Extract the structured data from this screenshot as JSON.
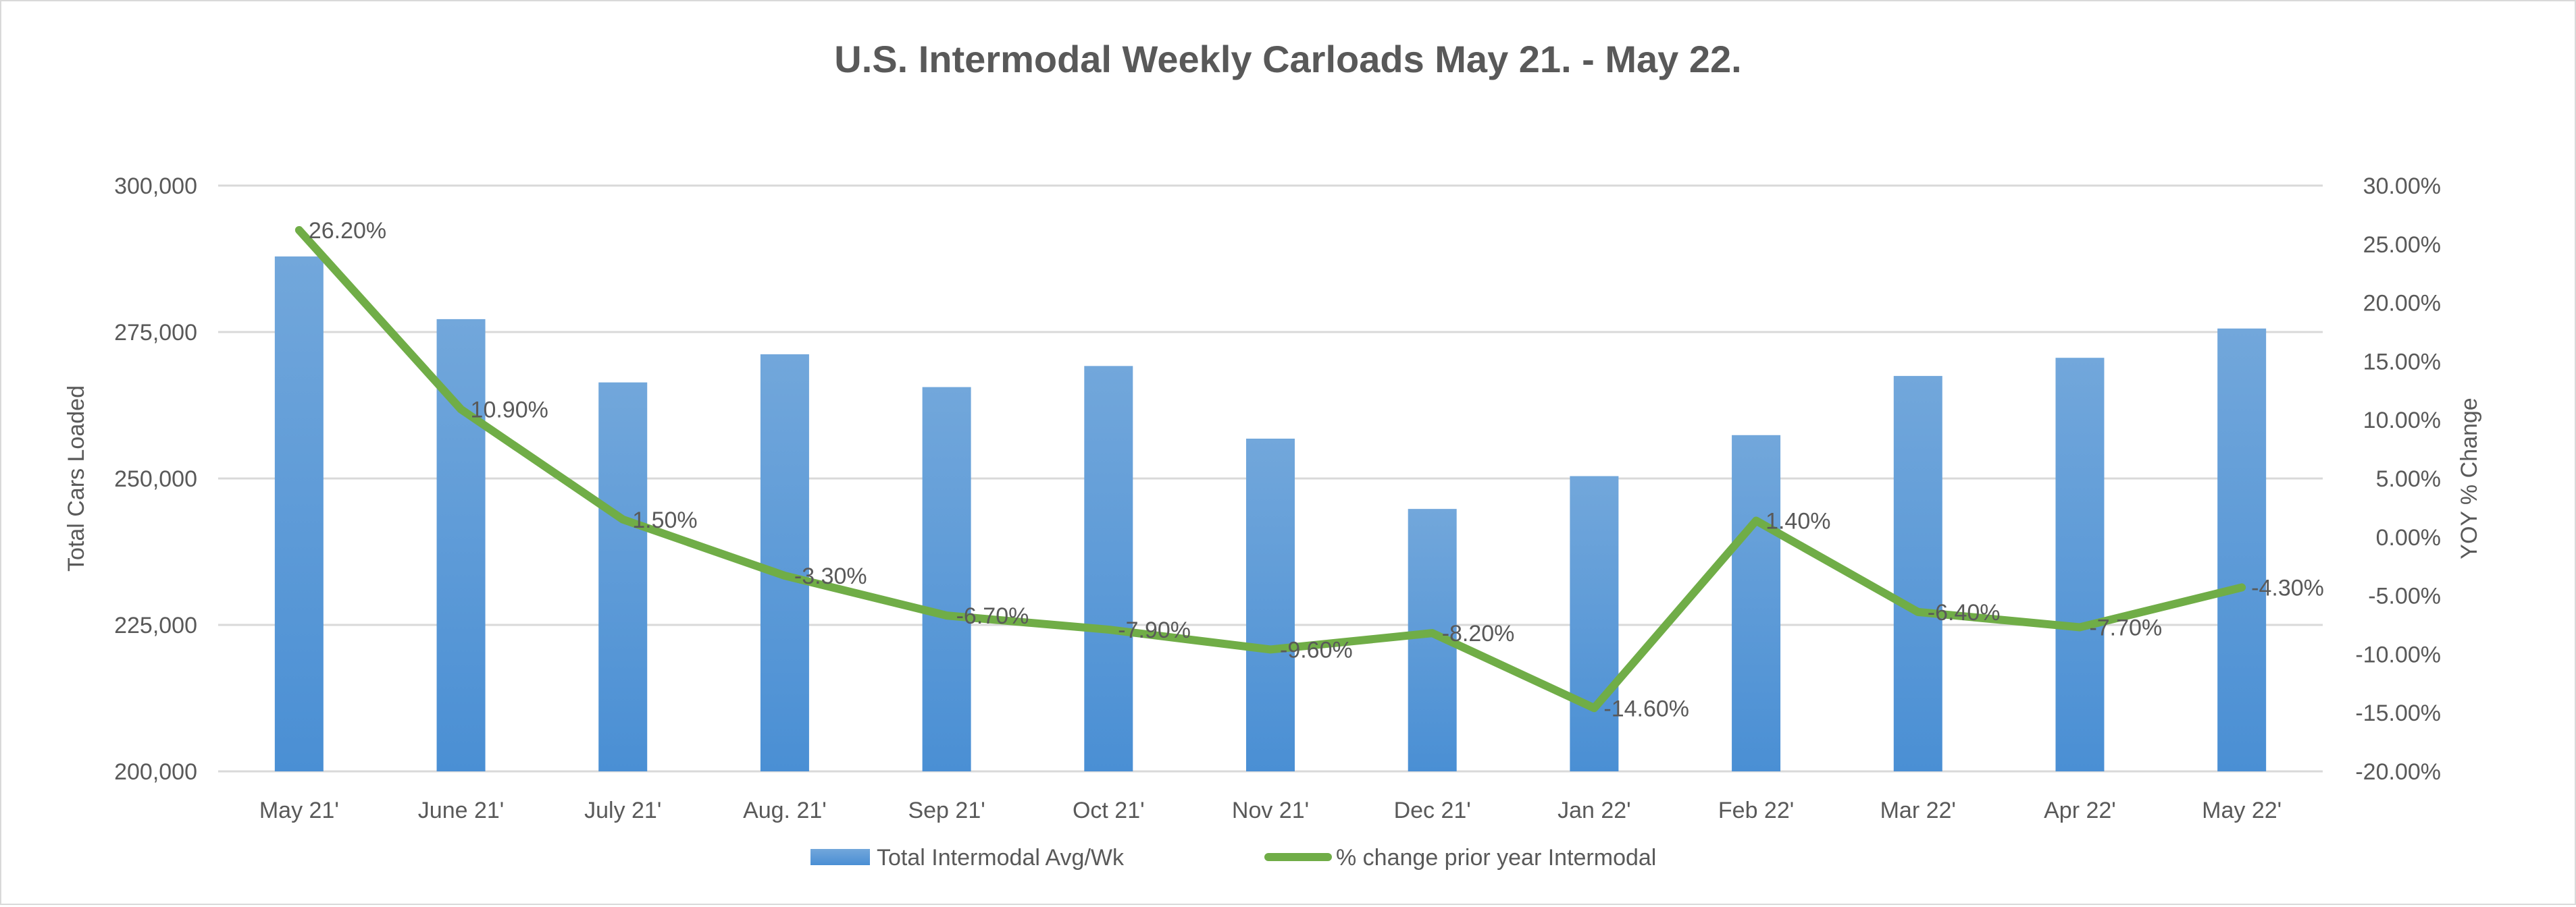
{
  "chart_data": {
    "type": "bar+line",
    "title": "U.S. Intermodal Weekly Carloads May 21. - May 22.",
    "categories": [
      "May 21'",
      "June 21'",
      "July 21'",
      "Aug. 21'",
      "Sep 21'",
      "Oct 21'",
      "Nov 21'",
      "Dec 21'",
      "Jan 22'",
      "Feb 22'",
      "Mar 22'",
      "Apr 22'",
      "May 22'"
    ],
    "ylabel": "Total Cars Loaded",
    "y2label": "YOY % Change",
    "ylim": [
      200000,
      300000
    ],
    "y_ticks": [
      "200,000",
      "225,000",
      "250,000",
      "275,000",
      "300,000"
    ],
    "y2lim": [
      -20,
      30
    ],
    "y2_ticks": [
      "-20.00%",
      "-15.00%",
      "-10.00%",
      "-5.00%",
      "0.00%",
      "5.00%",
      "10.00%",
      "15.00%",
      "20.00%",
      "25.00%",
      "30.00%"
    ],
    "grid": true,
    "legend_position": "bottom",
    "series": [
      {
        "name": "Total Intermodal Avg/Wk",
        "type": "bar",
        "axis": "left",
        "color": "#5b9bd5",
        "values": [
          287900,
          277200,
          266400,
          271200,
          265600,
          269200,
          256800,
          244800,
          250400,
          257400,
          267500,
          270600,
          275600
        ]
      },
      {
        "name": "% change prior year Intermodal",
        "type": "line",
        "axis": "right",
        "color": "#70ad47",
        "values": [
          26.2,
          10.9,
          1.5,
          -3.3,
          -6.7,
          -7.9,
          -9.6,
          -8.2,
          -14.6,
          1.4,
          -6.4,
          -7.7,
          -4.3
        ],
        "data_labels": [
          "26.20%",
          "10.90%",
          "1.50%",
          "-3.30%",
          "-6.70%",
          "-7.90%",
          "-9.60%",
          "-8.20%",
          "-14.60%",
          "1.40%",
          "-6.40%",
          "-7.70%",
          "-4.30%"
        ]
      }
    ]
  }
}
